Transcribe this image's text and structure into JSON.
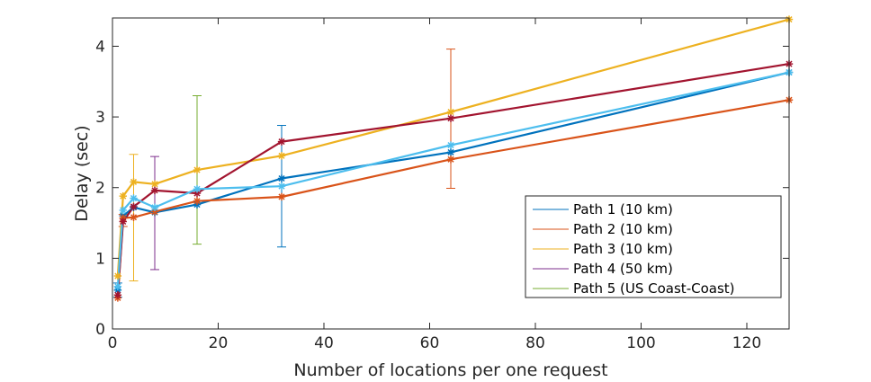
{
  "chart_data": {
    "type": "line",
    "title": "",
    "xlabel": "Number of locations per one request",
    "ylabel": "Delay (sec)",
    "xlim": [
      0,
      128
    ],
    "ylim": [
      0,
      4.4
    ],
    "xticks": [
      0,
      20,
      40,
      60,
      80,
      100,
      120
    ],
    "yticks": [
      0,
      1,
      2,
      3,
      4
    ],
    "grid": false,
    "legend_position": "bottom-right",
    "legend": [
      {
        "label": "Path 1 (10 km)",
        "color": "#0072BD"
      },
      {
        "label": "Path 2 (10 km)",
        "color": "#D95319"
      },
      {
        "label": "Path 3 (10 km)",
        "color": "#EDB120"
      },
      {
        "label": "Path 4 (50 km)",
        "color": "#7E2F8E"
      },
      {
        "label": "Path 5 (US Coast-Coast)",
        "color": "#77AC30"
      }
    ],
    "series": [
      {
        "color": "#0072BD",
        "x": [
          1,
          2,
          4,
          8,
          16,
          32,
          64,
          128
        ],
        "y": [
          0.55,
          1.6,
          1.72,
          1.65,
          1.76,
          2.13,
          2.5,
          3.63
        ]
      },
      {
        "color": "#D95319",
        "x": [
          1,
          2,
          4,
          8,
          16,
          32,
          64,
          128
        ],
        "y": [
          0.44,
          1.57,
          1.58,
          1.66,
          1.81,
          1.87,
          2.4,
          3.24
        ]
      },
      {
        "color": "#EDB120",
        "x": [
          1,
          2,
          4,
          8,
          16,
          32,
          64,
          128
        ],
        "y": [
          0.75,
          1.88,
          2.08,
          2.05,
          2.25,
          2.45,
          3.07,
          4.38
        ]
      },
      {
        "color": "#A2142F",
        "x": [
          1,
          2,
          4,
          8,
          16,
          32,
          64,
          128
        ],
        "y": [
          0.48,
          1.52,
          1.73,
          1.96,
          1.92,
          2.65,
          2.98,
          3.75
        ]
      },
      {
        "color": "#4DBEEE",
        "x": [
          1,
          2,
          4,
          8,
          16,
          32,
          64,
          128
        ],
        "y": [
          0.6,
          1.68,
          1.85,
          1.72,
          1.98,
          2.02,
          2.6,
          3.63
        ]
      }
    ],
    "error_bars": [
      {
        "color": "#0072BD",
        "x": 1,
        "low": 0.45,
        "high": 0.65
      },
      {
        "color": "#D95319",
        "x": 2,
        "low": 1.45,
        "high": 1.62
      },
      {
        "color": "#EDB120",
        "x": 4,
        "low": 0.68,
        "high": 2.47
      },
      {
        "color": "#7E2F8E",
        "x": 8,
        "low": 0.84,
        "high": 2.44
      },
      {
        "color": "#77AC30",
        "x": 16,
        "low": 1.2,
        "high": 3.3
      },
      {
        "color": "#0072BD",
        "x": 32,
        "low": 1.16,
        "high": 2.88
      },
      {
        "color": "#D95319",
        "x": 64,
        "low": 1.99,
        "high": 3.96
      }
    ]
  }
}
